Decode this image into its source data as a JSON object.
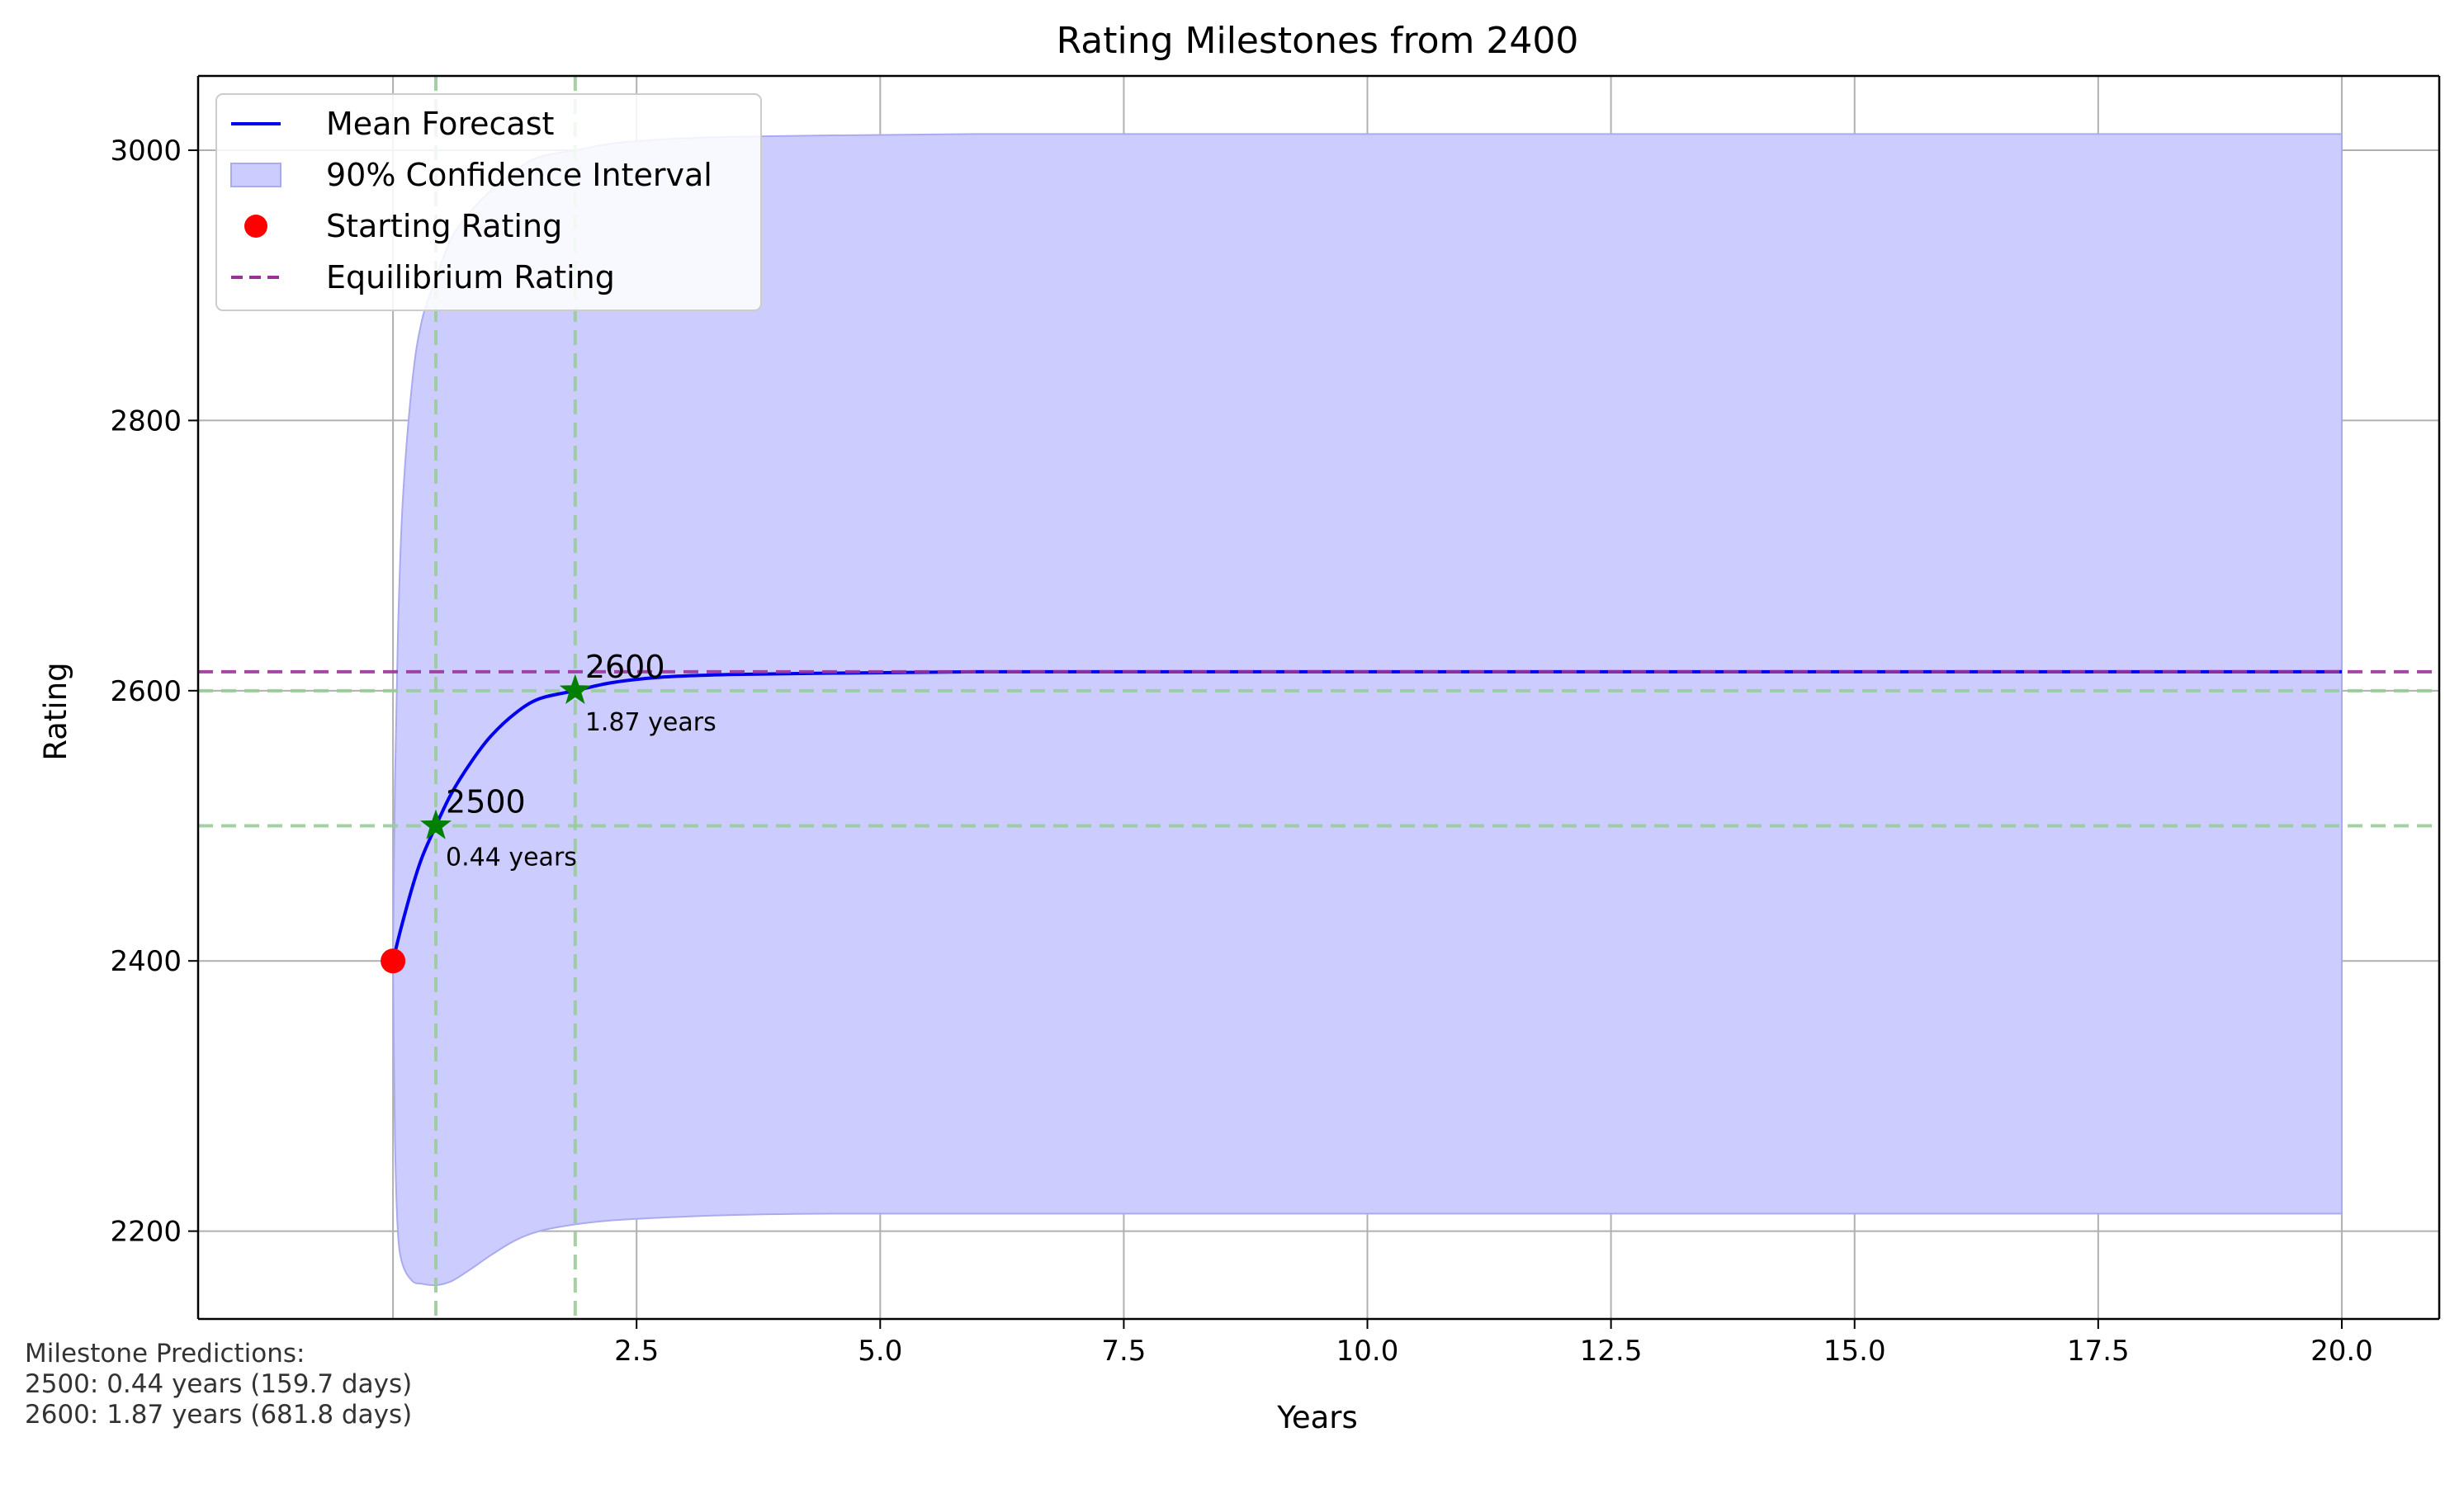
{
  "chart_data": {
    "type": "line",
    "title": "Rating Milestones from 2400",
    "xlabel": "Years",
    "ylabel": "Rating",
    "xlim": [
      -2.0,
      21.0
    ],
    "ylim": [
      2135,
      3055
    ],
    "x_ticks": [
      2.5,
      5.0,
      7.5,
      10.0,
      12.5,
      15.0,
      17.5,
      20.0
    ],
    "x_tick_labels": [
      "2.5",
      "5.0",
      "7.5",
      "10.0",
      "12.5",
      "15.0",
      "17.5",
      "20.0"
    ],
    "y_ticks": [
      2200,
      2400,
      2600,
      2800,
      3000
    ],
    "y_tick_labels": [
      "2200",
      "2400",
      "2600",
      "2800",
      "3000"
    ],
    "grid": true,
    "legend_position": "top-left",
    "model": {
      "start_rating": 2400,
      "equilibrium_rating": 2614,
      "x_max": 20
    },
    "series": [
      {
        "name": "Mean Forecast",
        "color": "#0000ee",
        "x": [
          0,
          0.05,
          0.1,
          0.2,
          0.3,
          0.44,
          0.6,
          0.8,
          1.0,
          1.25,
          1.5,
          1.87,
          2.25,
          2.75,
          3.5,
          4.5,
          6,
          8,
          10,
          12.5,
          15,
          17.5,
          20
        ],
        "values": [
          2400,
          2415,
          2429,
          2455,
          2477,
          2500,
          2524,
          2547,
          2566,
          2583,
          2594,
          2600,
          2606,
          2610,
          2612,
          2613,
          2614,
          2614,
          2614,
          2614,
          2614,
          2614,
          2614
        ]
      }
    ],
    "confidence_band": {
      "name": "90% Confidence Interval",
      "color": "#ccccff",
      "edge_color": "#aaaaee",
      "x": [
        0,
        0.02,
        0.05,
        0.1,
        0.2,
        0.3,
        0.44,
        0.6,
        0.8,
        1.0,
        1.25,
        1.5,
        1.87,
        2.25,
        2.75,
        3.5,
        4.5,
        6,
        8,
        10,
        15,
        20
      ],
      "upper": [
        2400,
        2530,
        2640,
        2740,
        2830,
        2875,
        2905,
        2935,
        2955,
        2970,
        2985,
        2995,
        3000,
        3005,
        3008,
        3010,
        3011,
        3012,
        3012,
        3012,
        3012,
        3012
      ],
      "lower": [
        2400,
        2270,
        2200,
        2175,
        2163,
        2161,
        2160,
        2163,
        2172,
        2182,
        2193,
        2200,
        2205,
        2208,
        2210,
        2212,
        2213,
        2213,
        2213,
        2213,
        2213,
        2213
      ]
    },
    "starting_point": {
      "name": "Starting Rating",
      "x": 0,
      "y": 2400,
      "color": "#ff0000"
    },
    "equilibrium": {
      "name": "Equilibrium Rating",
      "y": 2614,
      "color": "#993399"
    },
    "milestones": [
      {
        "rating": 2500,
        "years": 0.44,
        "label": "2500",
        "years_label": "0.44 years",
        "color": "#008000",
        "line_color": "#99cc99"
      },
      {
        "rating": 2600,
        "years": 1.87,
        "label": "2600",
        "years_label": "1.87 years",
        "color": "#008000",
        "line_color": "#99cc99"
      }
    ],
    "legend": [
      "Mean Forecast",
      "90% Confidence Interval",
      "Starting Rating",
      "Equilibrium Rating"
    ],
    "note_lines": [
      "Milestone Predictions:",
      "2500: 0.44 years (159.7 days)",
      "2600: 1.87 years (681.8 days)"
    ]
  }
}
